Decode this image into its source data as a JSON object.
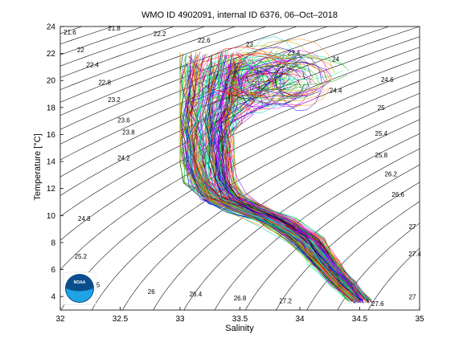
{
  "chart_data": {
    "type": "ts-diagram",
    "title": "WMO ID 4902091, internal ID 6376, 06–Oct–2018",
    "xlabel": "Salinity",
    "ylabel": "Temperature [°C]",
    "xlim": [
      32,
      35
    ],
    "ylim": [
      3,
      24
    ],
    "x_ticks": [
      32,
      32.5,
      33,
      33.5,
      34,
      34.5,
      35
    ],
    "x_tick_labels": [
      "32",
      "32.5",
      "33",
      "33.5",
      "34",
      "34.5",
      "35"
    ],
    "y_ticks": [
      4,
      6,
      8,
      10,
      12,
      14,
      16,
      18,
      20,
      22,
      24
    ],
    "y_tick_labels": [
      "4",
      "6",
      "8",
      "10",
      "12",
      "14",
      "16",
      "18",
      "20",
      "22",
      "24"
    ],
    "grid": false,
    "density_contours": {
      "start": 21.6,
      "step": 0.2,
      "count": 31,
      "labels": [
        {
          "text": "21.6",
          "s": 32.08,
          "t": 23.4
        },
        {
          "text": "21.8",
          "s": 32.45,
          "t": 23.7
        },
        {
          "text": "22.2",
          "s": 32.83,
          "t": 23.3
        },
        {
          "text": "22.6",
          "s": 33.2,
          "t": 22.8
        },
        {
          "text": "23",
          "s": 33.58,
          "t": 22.5
        },
        {
          "text": "23.4",
          "s": 33.95,
          "t": 21.9
        },
        {
          "text": "22",
          "s": 32.17,
          "t": 22.1
        },
        {
          "text": "22.4",
          "s": 32.27,
          "t": 21.0
        },
        {
          "text": "22.8",
          "s": 32.37,
          "t": 19.7
        },
        {
          "text": "23.2",
          "s": 32.45,
          "t": 18.4
        },
        {
          "text": "23.6",
          "s": 32.53,
          "t": 16.9
        },
        {
          "text": "23.8",
          "s": 32.57,
          "t": 16.0
        },
        {
          "text": "24.2",
          "s": 32.53,
          "t": 14.1
        },
        {
          "text": "24.8",
          "s": 32.2,
          "t": 9.6
        },
        {
          "text": "25.2",
          "s": 32.17,
          "t": 6.8
        },
        {
          "text": "25.5",
          "s": 32.28,
          "t": 4.7
        },
        {
          "text": "26",
          "s": 32.76,
          "t": 4.2
        },
        {
          "text": "26.4",
          "s": 33.13,
          "t": 4.0
        },
        {
          "text": "26.8",
          "s": 33.5,
          "t": 3.7
        },
        {
          "text": "27.2",
          "s": 33.88,
          "t": 3.5
        },
        {
          "text": "27.6",
          "s": 34.65,
          "t": 3.3
        },
        {
          "text": "27",
          "s": 34.94,
          "t": 3.8
        },
        {
          "text": "24",
          "s": 34.3,
          "t": 21.4
        },
        {
          "text": "24.4",
          "s": 34.3,
          "t": 19.1
        },
        {
          "text": "24.6",
          "s": 34.73,
          "t": 19.9
        },
        {
          "text": "25",
          "s": 34.68,
          "t": 17.8
        },
        {
          "text": "25.4",
          "s": 34.68,
          "t": 15.9
        },
        {
          "text": "25.8",
          "s": 34.68,
          "t": 14.3
        },
        {
          "text": "26.2",
          "s": 34.76,
          "t": 12.9
        },
        {
          "text": "26.6",
          "s": 34.82,
          "t": 11.4
        },
        {
          "text": "27",
          "s": 34.94,
          "t": 9.0
        },
        {
          "text": "27.4",
          "s": 34.96,
          "t": 7.0
        }
      ]
    },
    "profile_envelope": [
      [
        33.75,
        3.6
      ],
      [
        33.9,
        5.5
      ],
      [
        34.0,
        7.5
      ],
      [
        33.8,
        9.5
      ],
      [
        33.55,
        10.8
      ],
      [
        33.35,
        11.5
      ],
      [
        33.2,
        12.5
      ],
      [
        33.1,
        14.5
      ],
      [
        33.0,
        16.0
      ],
      [
        33.1,
        17.5
      ],
      [
        33.2,
        19.5
      ],
      [
        33.3,
        21.5
      ],
      [
        33.32,
        22.3
      ],
      [
        33.55,
        21.0
      ],
      [
        33.7,
        22.3
      ],
      [
        33.95,
        22.5
      ],
      [
        34.12,
        22.0
      ],
      [
        34.3,
        21.8
      ],
      [
        34.2,
        20.5
      ],
      [
        34.0,
        19.0
      ],
      [
        33.8,
        16.0
      ],
      [
        33.7,
        13.5
      ],
      [
        33.85,
        11.5
      ],
      [
        34.15,
        10.0
      ],
      [
        34.3,
        8.0
      ],
      [
        34.45,
        5.5
      ],
      [
        34.55,
        3.6
      ]
    ],
    "profile_count": 180,
    "logo_text": "NOAA"
  }
}
